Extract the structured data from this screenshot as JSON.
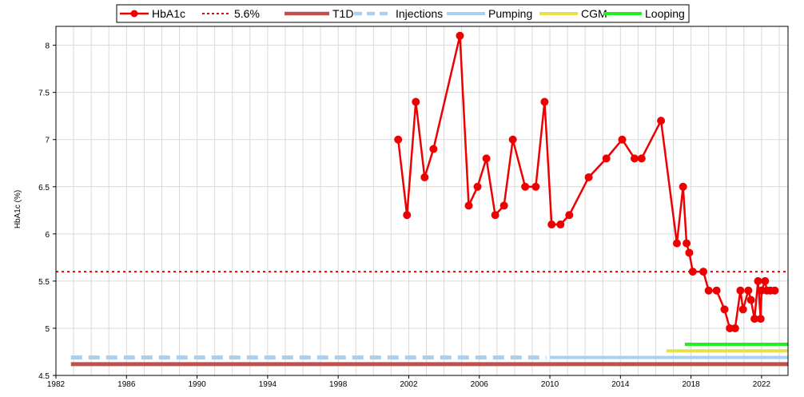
{
  "chart_data": {
    "type": "line",
    "title": "",
    "xlabel": "",
    "ylabel": "HbA1c (%)",
    "xlim": [
      1982,
      2023.5
    ],
    "ylim": [
      4.5,
      8.2
    ],
    "x_ticks": [
      1982,
      1986,
      1990,
      1994,
      1998,
      2002,
      2006,
      2010,
      2014,
      2018,
      2022
    ],
    "x_tick_labels": [
      "1982",
      "1986",
      "1990",
      "1994",
      "1998",
      "2002",
      "2006",
      "2010",
      "2014",
      "2018",
      "2022"
    ],
    "y_ticks": [
      4.5,
      5,
      5.5,
      6,
      6.5,
      7,
      7.5,
      8
    ],
    "y_tick_labels": [
      "4.5",
      "5",
      "5.5",
      "6",
      "6.5",
      "7",
      "7.5",
      "8"
    ],
    "grid": true,
    "legend_position": "top-center",
    "series": [
      {
        "name": "HbA1c",
        "style": "line-markers",
        "color": "#ee0000",
        "points": [
          [
            2001.4,
            7.0
          ],
          [
            2001.9,
            6.2
          ],
          [
            2002.4,
            7.4
          ],
          [
            2002.9,
            6.6
          ],
          [
            2003.4,
            6.9
          ],
          [
            2004.9,
            8.1
          ],
          [
            2005.4,
            6.3
          ],
          [
            2005.9,
            6.5
          ],
          [
            2006.4,
            6.8
          ],
          [
            2006.9,
            6.2
          ],
          [
            2007.4,
            6.3
          ],
          [
            2007.9,
            7.0
          ],
          [
            2008.6,
            6.5
          ],
          [
            2009.2,
            6.5
          ],
          [
            2009.7,
            7.4
          ],
          [
            2010.1,
            6.1
          ],
          [
            2010.6,
            6.1
          ],
          [
            2011.1,
            6.2
          ],
          [
            2012.2,
            6.6
          ],
          [
            2013.2,
            6.8
          ],
          [
            2014.1,
            7.0
          ],
          [
            2014.8,
            6.8
          ],
          [
            2015.2,
            6.8
          ],
          [
            2016.3,
            7.2
          ],
          [
            2017.2,
            5.9
          ],
          [
            2017.55,
            6.5
          ],
          [
            2017.75,
            5.9
          ],
          [
            2017.9,
            5.8
          ],
          [
            2018.1,
            5.6
          ],
          [
            2018.7,
            5.6
          ],
          [
            2019.0,
            5.4
          ],
          [
            2019.45,
            5.4
          ],
          [
            2019.9,
            5.2
          ],
          [
            2020.2,
            5.0
          ],
          [
            2020.5,
            5.0
          ],
          [
            2020.8,
            5.4
          ],
          [
            2020.95,
            5.2
          ],
          [
            2021.25,
            5.4
          ],
          [
            2021.4,
            5.3
          ],
          [
            2021.6,
            5.1
          ],
          [
            2021.8,
            5.5
          ],
          [
            2021.95,
            5.1
          ],
          [
            2022.0,
            5.4
          ],
          [
            2022.2,
            5.5
          ],
          [
            2022.3,
            5.4
          ],
          [
            2022.5,
            5.4
          ],
          [
            2022.75,
            5.4
          ]
        ]
      },
      {
        "name": "5.6%",
        "style": "dotted",
        "color": "#ee0000",
        "points": [
          [
            1982,
            5.6
          ],
          [
            2023.5,
            5.6
          ]
        ]
      },
      {
        "name": "T1D",
        "style": "thick",
        "color": "#c0504d",
        "points": [
          [
            1982.85,
            4.62
          ],
          [
            2023.5,
            4.62
          ]
        ]
      },
      {
        "name": "Injections",
        "style": "dashed",
        "color": "#a8d0f2",
        "points": [
          [
            1982.85,
            4.69
          ],
          [
            2009.8,
            4.69
          ]
        ]
      },
      {
        "name": "Pumping",
        "style": "solid",
        "color": "#a8d0f2",
        "points": [
          [
            2010.0,
            4.69
          ],
          [
            2023.5,
            4.69
          ]
        ]
      },
      {
        "name": "CGM",
        "style": "solid",
        "color": "#e6e04a",
        "points": [
          [
            2016.6,
            4.76
          ],
          [
            2023.5,
            4.76
          ]
        ]
      },
      {
        "name": "Looping",
        "style": "solid",
        "color": "#22ee22",
        "points": [
          [
            2017.65,
            4.83
          ],
          [
            2023.5,
            4.83
          ]
        ]
      }
    ]
  }
}
